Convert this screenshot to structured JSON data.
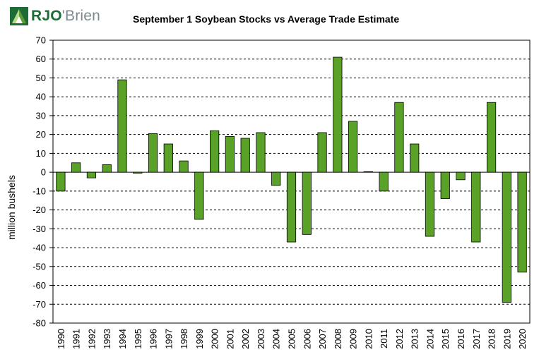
{
  "logo": {
    "text_bold": "RJO",
    "text_light": "Brien",
    "apostrophe": "'"
  },
  "chart_data": {
    "type": "bar",
    "title": "September 1 Soybean Stocks vs Average Trade Estimate",
    "xlabel": "",
    "ylabel": "million bushels",
    "ylim": [
      -80,
      70
    ],
    "yticks": [
      70,
      60,
      50,
      40,
      30,
      20,
      10,
      0,
      -10,
      -20,
      -30,
      -40,
      -50,
      -60,
      -70,
      -80
    ],
    "grid": true,
    "legend": "none",
    "bar_color": "#59a127",
    "bar_edge_color": "#000000",
    "categories": [
      "1990",
      "1991",
      "1992",
      "1993",
      "1994",
      "1995",
      "1996",
      "1997",
      "1998",
      "1999",
      "2000",
      "2001",
      "2002",
      "2003",
      "2004",
      "2005",
      "2006",
      "2007",
      "2008",
      "2009",
      "2010",
      "2011",
      "2012",
      "2013",
      "2014",
      "2015",
      "2016",
      "2017",
      "2018",
      "2019",
      "2020"
    ],
    "values": [
      -10,
      5,
      -3,
      4,
      49,
      -0.5,
      20.5,
      15,
      6,
      -25,
      22,
      19,
      18,
      21,
      -7,
      -37,
      -33,
      21,
      61,
      27,
      0.3,
      -10,
      37,
      15,
      -34,
      -14,
      -4,
      -37,
      37,
      -69,
      -53
    ]
  }
}
